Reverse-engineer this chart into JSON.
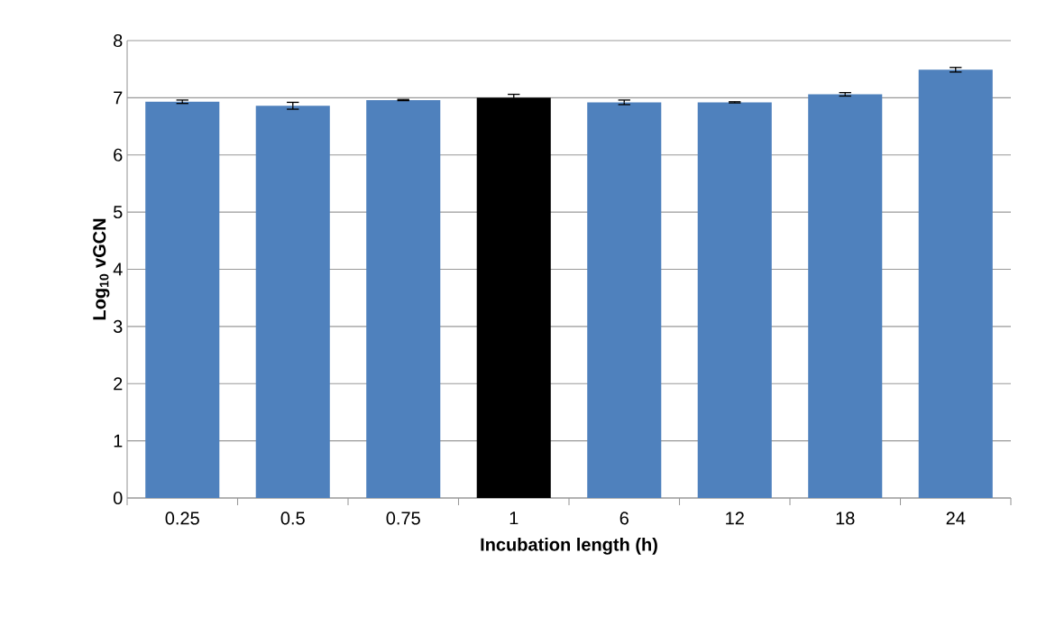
{
  "chart_data": {
    "type": "bar",
    "xlabel": "Incubation length (h)",
    "ylabel": "Log$_{10}$ vGCN",
    "categories": [
      "0.25",
      "0.5",
      "0.75",
      "1",
      "6",
      "12",
      "18",
      "24"
    ],
    "values": [
      6.93,
      6.86,
      6.96,
      7.0,
      6.92,
      6.92,
      7.06,
      7.49
    ],
    "errors": [
      0.03,
      0.06,
      0.01,
      0.06,
      0.04,
      0.01,
      0.03,
      0.04
    ],
    "colors": [
      "#4f81bd",
      "#4f81bd",
      "#4f81bd",
      "#000000",
      "#4f81bd",
      "#4f81bd",
      "#4f81bd",
      "#4f81bd"
    ],
    "ylim": [
      0,
      8
    ],
    "yticks": [
      0,
      1,
      2,
      3,
      4,
      5,
      6,
      7,
      8
    ],
    "grid": "y"
  }
}
